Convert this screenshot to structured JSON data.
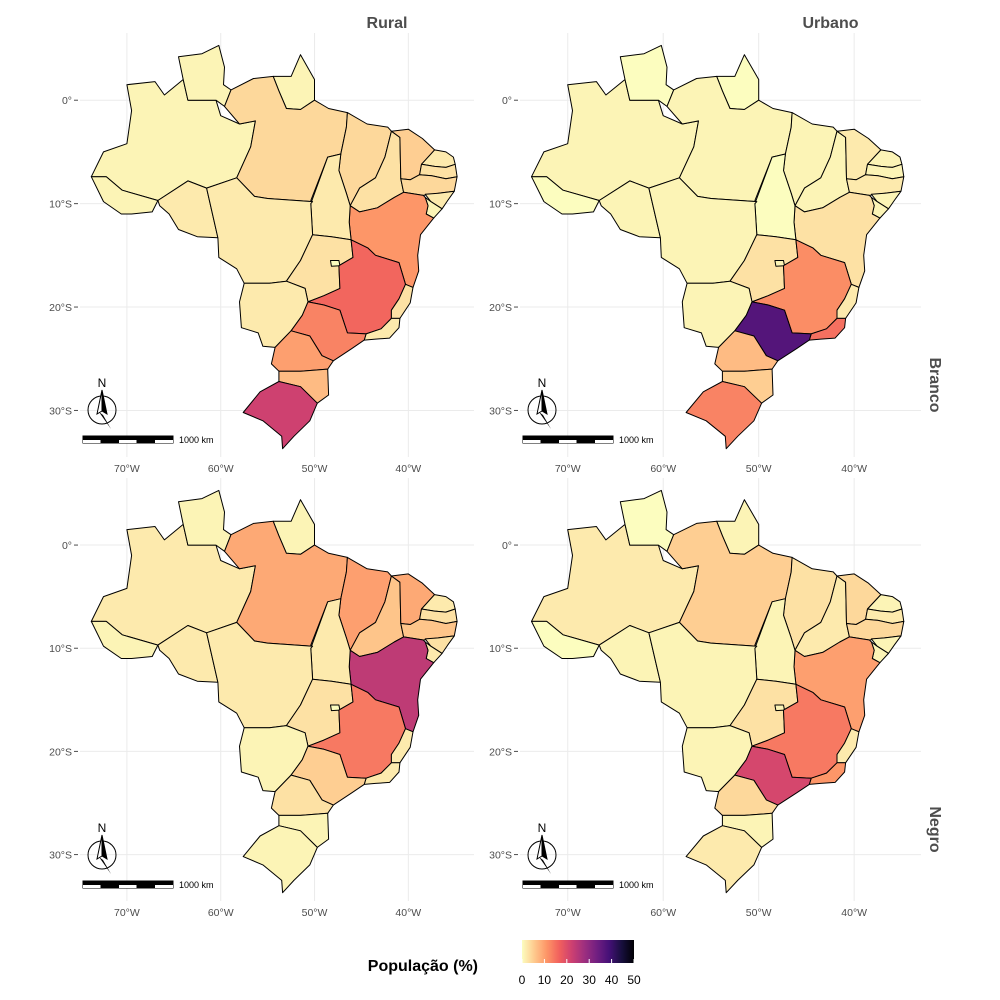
{
  "facets": {
    "columns": [
      "Rural",
      "Urbano"
    ],
    "rows": [
      "Branco",
      "Negro"
    ]
  },
  "axes": {
    "x_ticks": [
      "70°W",
      "60°W",
      "50°W",
      "40°W"
    ],
    "x_values": [
      -70,
      -60,
      -50,
      -40
    ],
    "y_ticks": [
      "0°",
      "10°S",
      "20°S",
      "30°S"
    ],
    "y_values": [
      0,
      -10,
      -20,
      -30
    ],
    "lon_range": [
      -75,
      -33
    ],
    "lat_range": [
      -34.5,
      6.5
    ]
  },
  "map_elements": {
    "north_label": "N",
    "scale_label": "1000 km"
  },
  "legend": {
    "title": "População (%)",
    "ticks": [
      "0",
      "10",
      "20",
      "30",
      "40",
      "50"
    ],
    "tick_values": [
      0,
      10,
      20,
      30,
      40,
      50
    ],
    "domain": [
      0,
      50
    ],
    "colors": [
      "#fcfdbf",
      "#fec98d",
      "#fd9567",
      "#f1605d",
      "#cd4071",
      "#9e2f7f",
      "#721f81",
      "#451077",
      "#180f3e",
      "#000004"
    ]
  },
  "chart_data": {
    "type": "choropleth",
    "legend_title": "População (%)",
    "value_range": [
      0,
      50
    ],
    "panels": [
      {
        "column": "Rural",
        "row": "Branco",
        "values": {
          "AM": 1,
          "PA": 4,
          "RR": 1,
          "AP": 1,
          "AC": 1,
          "RO": 2,
          "MT": 2,
          "TO": 2,
          "MA": 4,
          "PI": 3,
          "CE": 5,
          "RN": 2,
          "PB": 3,
          "PE": 4,
          "AL": 2,
          "SE": 1,
          "BA": 11,
          "GO": 3,
          "DF": 0,
          "MS": 2,
          "MG": 16,
          "SP": 13,
          "RJ": 2,
          "ES": 3,
          "PR": 10,
          "SC": 7,
          "RS": 22
        }
      },
      {
        "column": "Urbano",
        "row": "Branco",
        "values": {
          "AM": 1,
          "PA": 1,
          "RR": 0,
          "AP": 0,
          "AC": 0,
          "RO": 1,
          "MT": 1,
          "TO": 0,
          "MA": 1,
          "PI": 1,
          "CE": 2,
          "RN": 1,
          "PB": 1,
          "PE": 2,
          "AL": 1,
          "SE": 1,
          "BA": 3,
          "GO": 3,
          "DF": 1,
          "MS": 1,
          "MG": 12,
          "SP": 37,
          "RJ": 15,
          "ES": 2,
          "PR": 7,
          "SC": 5,
          "RS": 13
        }
      },
      {
        "column": "Rural",
        "row": "Negro",
        "values": {
          "AM": 2,
          "PA": 9,
          "RR": 1,
          "AP": 1,
          "AC": 1,
          "RO": 2,
          "MT": 2,
          "TO": 2,
          "MA": 10,
          "PI": 6,
          "CE": 9,
          "RN": 2,
          "PB": 3,
          "PE": 6,
          "AL": 3,
          "SE": 2,
          "BA": 24,
          "GO": 3,
          "DF": 0,
          "MS": 1,
          "MG": 14,
          "SP": 5,
          "RJ": 2,
          "ES": 2,
          "PR": 3,
          "SC": 1,
          "RS": 1
        }
      },
      {
        "column": "Urbano",
        "row": "Negro",
        "values": {
          "AM": 2,
          "PA": 5,
          "RR": 0,
          "AP": 1,
          "AC": 0,
          "RO": 1,
          "MT": 1,
          "TO": 1,
          "MA": 3,
          "PI": 2,
          "CE": 4,
          "RN": 1,
          "PB": 2,
          "PE": 4,
          "AL": 1,
          "SE": 1,
          "BA": 10,
          "GO": 3,
          "DF": 1,
          "MS": 1,
          "MG": 14,
          "SP": 21,
          "RJ": 11,
          "ES": 2,
          "PR": 4,
          "SC": 1,
          "RS": 2
        }
      }
    ]
  }
}
